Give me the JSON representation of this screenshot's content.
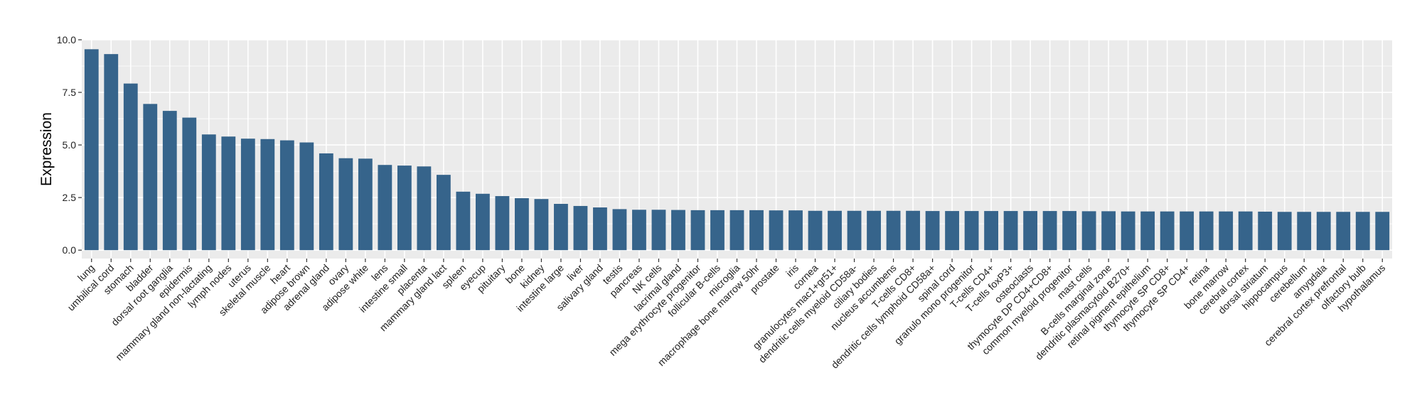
{
  "chart_data": {
    "type": "bar",
    "ylabel": "Expression",
    "xlabel": "",
    "ylim": [
      -0.4,
      10.0
    ],
    "yticks": [
      0.0,
      2.5,
      5.0,
      7.5,
      10.0
    ],
    "ytick_labels": [
      "0.0",
      "2.5",
      "5.0",
      "7.5",
      "10.0"
    ],
    "grid": true,
    "bar_color": "#36648b",
    "panel_color": "#ebebeb",
    "grid_color": "#ffffff",
    "categories": [
      "lung",
      "umbilical cord",
      "stomach",
      "bladder",
      "dorsal root ganglia",
      "epidermis",
      "mammary gland non-lactating",
      "lymph nodes",
      "uterus",
      "skeletal muscle",
      "heart",
      "adipose brown",
      "adrenal gland",
      "ovary",
      "adipose white",
      "lens",
      "intestine small",
      "placenta",
      "mammary gland  lact",
      "spleen",
      "eyecup",
      "pituitary",
      "bone",
      "kidney",
      "intestine large",
      "liver",
      "salivary gland",
      "testis",
      "pancreas",
      "NK cells",
      "lacrimal gland",
      "mega erythrocyte progenitor",
      "follicular B-cells",
      "microglia",
      "macrophage bone marrow 50hr",
      "prostate",
      "iris",
      "cornea",
      "granulocytes mac1+gr51+",
      "dendritic cells myeloid CD58a-",
      "ciliary bodies",
      "nucleus accumbens",
      "T-cells CD8+",
      "dendritic cells lymphoid CD58a+",
      "spinal cord",
      "granulo mono progenitor",
      "T-cells CD4+",
      "T-cells foxP3+",
      "osteoclasts",
      "thymocyte DP CD4+CD8+",
      "common myeloid progenitor",
      "mast cells",
      "B-cells marginal zone",
      "dendritic plasmacytoid B270+",
      "retinal pigment epithelium",
      "thymocyte SP CD8+",
      "thymocyte SP CD4+",
      "retina",
      "bone marrow",
      "cerebral cortex",
      "dorsal striatum",
      "hippocampus",
      "cerebellum",
      "amygdala",
      "cerebral cortex prefrontal",
      "olfactory bulb",
      "hypothalamus"
    ],
    "values": [
      9.55,
      9.32,
      7.92,
      6.95,
      6.62,
      6.3,
      5.5,
      5.4,
      5.3,
      5.28,
      5.22,
      5.12,
      4.6,
      4.37,
      4.35,
      4.05,
      4.02,
      3.98,
      3.58,
      2.78,
      2.68,
      2.57,
      2.47,
      2.43,
      2.2,
      2.1,
      2.03,
      1.95,
      1.92,
      1.92,
      1.91,
      1.9,
      1.9,
      1.9,
      1.9,
      1.89,
      1.89,
      1.87,
      1.87,
      1.87,
      1.87,
      1.87,
      1.87,
      1.86,
      1.86,
      1.86,
      1.86,
      1.86,
      1.86,
      1.86,
      1.86,
      1.85,
      1.85,
      1.84,
      1.84,
      1.84,
      1.84,
      1.84,
      1.84,
      1.84,
      1.83,
      1.82,
      1.82,
      1.82,
      1.82,
      1.82,
      1.82
    ]
  }
}
